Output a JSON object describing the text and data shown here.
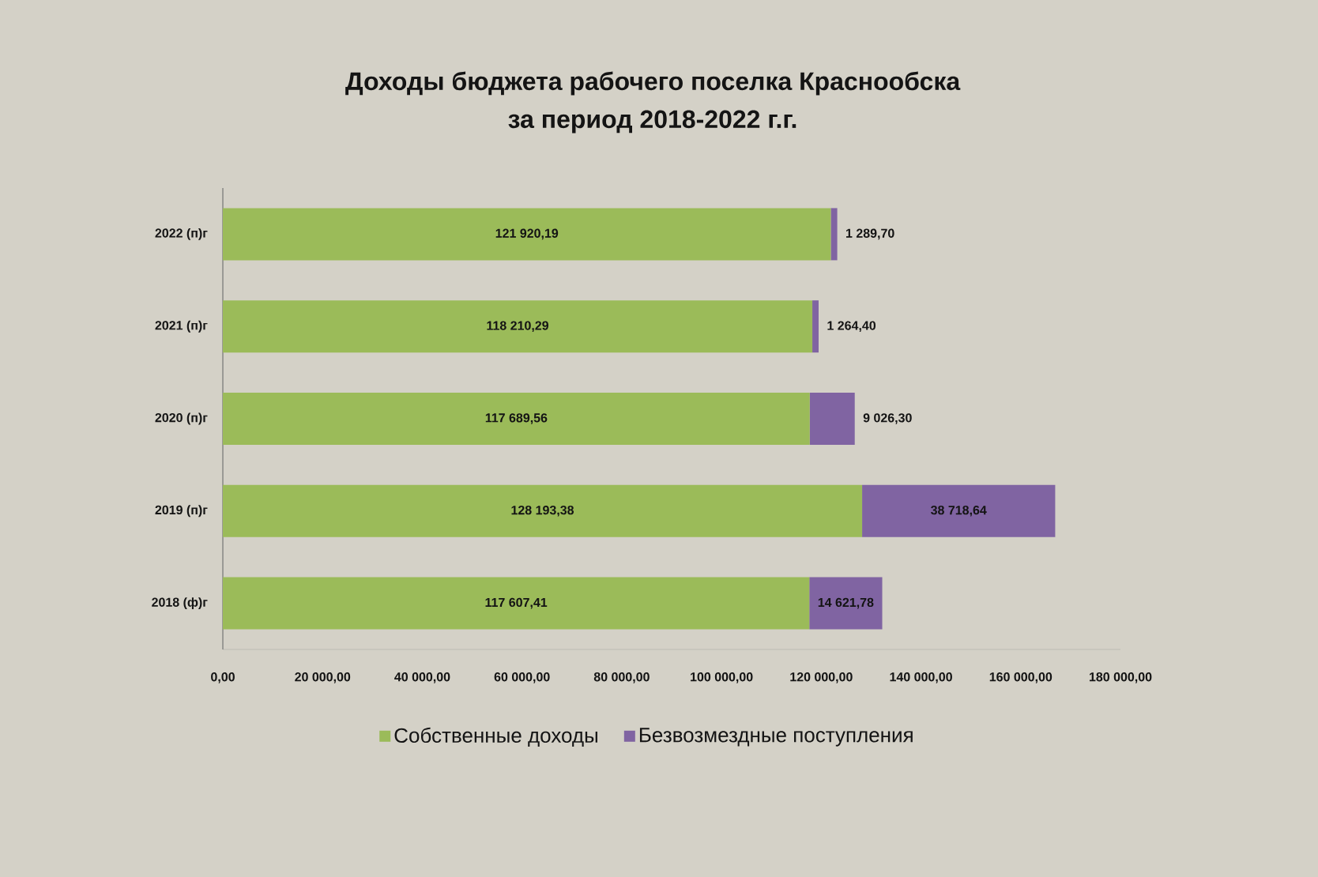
{
  "chart_data": {
    "type": "bar",
    "orientation": "horizontal",
    "stacked": true,
    "title": "Доходы бюджета рабочего поселка Краснообска за период 2018-2022 г.г.",
    "categories": [
      "2022 (п)г",
      "2021 (п)г",
      "2020 (п)г",
      "2019 (п)г",
      "2018 (ф)г"
    ],
    "series": [
      {
        "name": "Собственные доходы",
        "color": "#9bbb59",
        "values": [
          121920.19,
          118210.29,
          117689.56,
          128193.38,
          117607.41
        ],
        "value_labels": [
          "121 920,19",
          "118 210,29",
          "117 689,56",
          "128 193,38",
          "117 607,41"
        ]
      },
      {
        "name": "Безвозмездные поступления",
        "color": "#8064a2",
        "values": [
          1289.7,
          1264.4,
          9026.3,
          38718.64,
          14621.78
        ],
        "value_labels": [
          "1 289,70",
          "1 264,40",
          "9 026,30",
          "38 718,64",
          "14 621,78"
        ]
      }
    ],
    "xlim": [
      0,
      180000
    ],
    "xticks": [
      {
        "value": 0,
        "label": "0,00"
      },
      {
        "value": 20000,
        "label": "20 000,00"
      },
      {
        "value": 40000,
        "label": "40 000,00"
      },
      {
        "value": 60000,
        "label": "60 000,00"
      },
      {
        "value": 80000,
        "label": "80 000,00"
      },
      {
        "value": 100000,
        "label": "100 000,00"
      },
      {
        "value": 120000,
        "label": "120 000,00"
      },
      {
        "value": 140000,
        "label": "140 000,00"
      },
      {
        "value": 160000,
        "label": "160 000,00"
      },
      {
        "value": 180000,
        "label": "180 000,00"
      }
    ],
    "legend": "bottom"
  }
}
